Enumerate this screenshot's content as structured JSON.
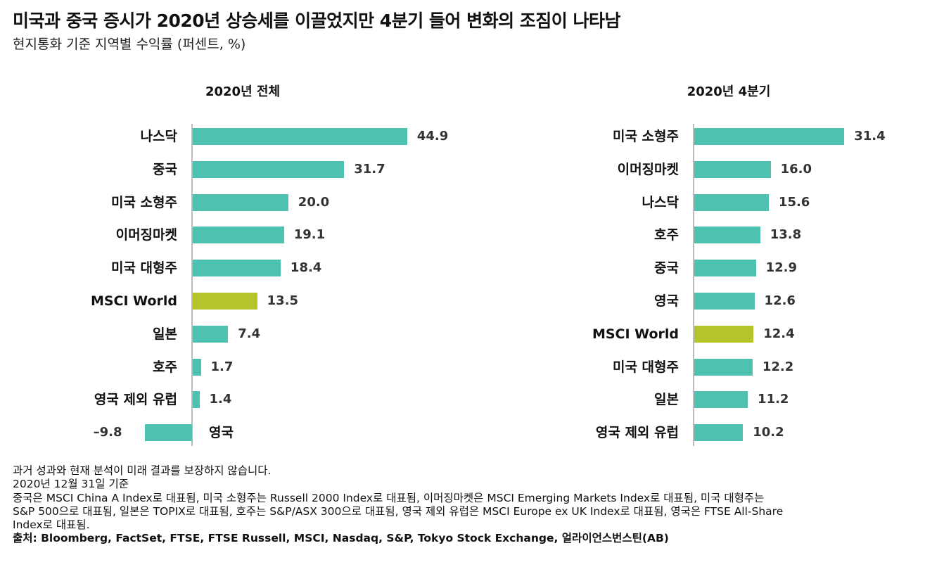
{
  "title": "미국과 중국 증시가 2020년 상승세를 이끌었지만 4분기 들어 변화의 조짐이 나타남",
  "subtitle": "현지통화 기준 지역별 수익률 (퍼센트, %)",
  "colors": {
    "default": "#4fc1b0",
    "highlight": "#b3c52a",
    "axis": "#bbbbbb"
  },
  "chart_data": [
    {
      "type": "bar",
      "orientation": "horizontal",
      "title": "2020년 전체",
      "categories": [
        "나스닥",
        "중국",
        "미국 소형주",
        "이머징마켓",
        "미국 대형주",
        "MSCI World",
        "일본",
        "호주",
        "영국 제외 유럽",
        "영국"
      ],
      "values": [
        44.9,
        31.7,
        20.0,
        19.1,
        18.4,
        13.5,
        7.4,
        1.7,
        1.4,
        -9.8
      ],
      "labels": [
        "44.9",
        "31.7",
        "20.0",
        "19.1",
        "18.4",
        "13.5",
        "7.4",
        "1.7",
        "1.4",
        "–9.8"
      ],
      "highlight": "MSCI World"
    },
    {
      "type": "bar",
      "orientation": "horizontal",
      "title": "2020년 4분기",
      "categories": [
        "미국 소형주",
        "이머징마켓",
        "나스닥",
        "호주",
        "중국",
        "영국",
        "MSCI World",
        "미국 대형주",
        "일본",
        "영국 제외 유럽"
      ],
      "values": [
        31.4,
        16.0,
        15.6,
        13.8,
        12.9,
        12.6,
        12.4,
        12.2,
        11.2,
        10.2
      ],
      "labels": [
        "31.4",
        "16.0",
        "15.6",
        "13.8",
        "12.9",
        "12.6",
        "12.4",
        "12.2",
        "11.2",
        "10.2"
      ],
      "highlight": "MSCI World"
    }
  ],
  "footnotes": {
    "disclaimer": "과거 성과와 현재 분석이 미래 결과를 보장하지 않습니다.",
    "as_of": "2020년 12월 31일 기준",
    "notes_lines": [
      "중국은 MSCI China A Index로 대표됨, 미국 소형주는 Russell 2000 Index로 대표됨, 이머징마켓은 MSCI Emerging Markets Index로 대표됨, 미국 대형주는",
      "S&P 500으로 대표됨, 일본은 TOPIX로 대표됨, 호주는 S&P/ASX 300으로 대표됨, 영국 제외 유럽은 MSCI Europe ex UK Index로 대표됨, 영국은 FTSE All-Share",
      "Index로 대표됨."
    ],
    "source": "출처: Bloomberg, FactSet, FTSE, FTSE Russell, MSCI, Nasdaq, S&P, Tokyo Stock Exchange, 얼라이언스번스틴(AB)"
  }
}
